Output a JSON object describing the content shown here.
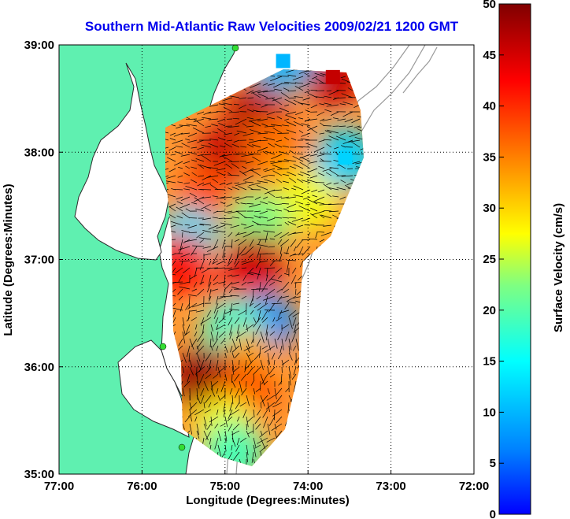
{
  "chart_data": {
    "type": "heatmap",
    "title": "Southern Mid-Atlantic Raw Velocities 2009/02/21 1200 GMT",
    "xlabel": "Longitude (Degrees:Minutes)",
    "ylabel": "Latitude (Degrees:Minutes)",
    "colorbar_label": "Surface Velocity (cm/s)",
    "xlim": [
      -77,
      -72
    ],
    "ylim": [
      35,
      39
    ],
    "x_ticks": [
      {
        "value": -77,
        "label": "77:00"
      },
      {
        "value": -76,
        "label": "76:00"
      },
      {
        "value": -75,
        "label": "75:00"
      },
      {
        "value": -74,
        "label": "74:00"
      },
      {
        "value": -73,
        "label": "73:00"
      },
      {
        "value": -72,
        "label": "72:00"
      }
    ],
    "y_ticks": [
      {
        "value": 35,
        "label": "35:00"
      },
      {
        "value": 36,
        "label": "36:00"
      },
      {
        "value": 37,
        "label": "37:00"
      },
      {
        "value": 38,
        "label": "38:00"
      },
      {
        "value": 39,
        "label": "39:00"
      }
    ],
    "colorbar": {
      "range": [
        0,
        50
      ],
      "ticks": [
        {
          "value": 0,
          "label": "0"
        },
        {
          "value": 5,
          "label": "5"
        },
        {
          "value": 10,
          "label": "10"
        },
        {
          "value": 15,
          "label": "15"
        },
        {
          "value": 20,
          "label": "20"
        },
        {
          "value": 25,
          "label": "25"
        },
        {
          "value": 30,
          "label": "30"
        },
        {
          "value": 35,
          "label": "35"
        },
        {
          "value": 40,
          "label": "40"
        },
        {
          "value": 45,
          "label": "45"
        },
        {
          "value": 50,
          "label": "50"
        }
      ]
    },
    "grid": "dotted",
    "colors": {
      "land": "#5ff0b0",
      "title": "#0000ee",
      "arrows": "#000000"
    },
    "velocity_zones": [
      {
        "lon": -75.0,
        "lat": 37.95,
        "speed": 46
      },
      {
        "lon": -74.6,
        "lat": 38.35,
        "speed": 47
      },
      {
        "lon": -74.4,
        "lat": 38.05,
        "speed": 36
      },
      {
        "lon": -74.2,
        "lat": 37.75,
        "speed": 34
      },
      {
        "lon": -74.0,
        "lat": 37.55,
        "speed": 27
      },
      {
        "lon": -75.2,
        "lat": 37.6,
        "speed": 38
      },
      {
        "lon": -74.6,
        "lat": 37.35,
        "speed": 22
      },
      {
        "lon": -75.45,
        "lat": 37.2,
        "speed": 13
      },
      {
        "lon": -75.55,
        "lat": 36.95,
        "speed": 42
      },
      {
        "lon": -74.65,
        "lat": 36.95,
        "speed": 46
      },
      {
        "lon": -74.85,
        "lat": 36.6,
        "speed": 43
      },
      {
        "lon": -74.5,
        "lat": 36.4,
        "speed": 7
      },
      {
        "lon": -74.9,
        "lat": 36.35,
        "speed": 18
      },
      {
        "lon": -74.7,
        "lat": 36.05,
        "speed": 33
      },
      {
        "lon": -75.25,
        "lat": 35.9,
        "speed": 49
      },
      {
        "lon": -74.75,
        "lat": 35.75,
        "speed": 38
      },
      {
        "lon": -75.0,
        "lat": 35.45,
        "speed": 27
      },
      {
        "lon": -74.9,
        "lat": 35.2,
        "speed": 19
      },
      {
        "lon": -73.7,
        "lat": 38.7,
        "speed": 46
      },
      {
        "lon": -74.3,
        "lat": 38.85,
        "speed": 10
      },
      {
        "lon": -73.55,
        "lat": 37.95,
        "speed": 12
      }
    ]
  }
}
